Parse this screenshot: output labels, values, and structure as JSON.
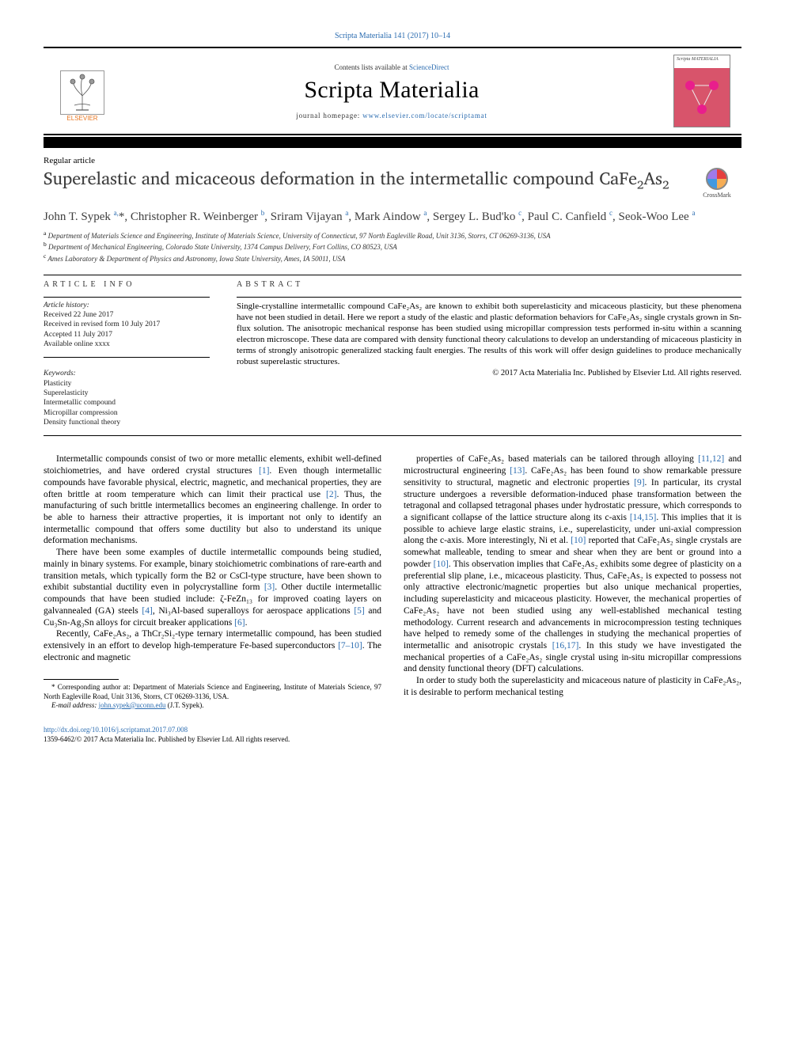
{
  "citation": "Scripta Materialia 141 (2017) 10–14",
  "banner": {
    "contents_prefix": "Contents lists available at ",
    "contents_link": "ScienceDirect",
    "journal": "Scripta Materialia",
    "homepage_prefix": "journal homepage: ",
    "homepage_url": "www.elsevier.com/locate/scriptamat",
    "publisher_label": "ELSEVIER",
    "cover_title": "Scripta MATERIALIA"
  },
  "article_type": "Regular article",
  "title_parts": {
    "pre": "Superelastic and micaceous deformation in the intermetallic compound CaFe",
    "sub1": "2",
    "mid": "As",
    "sub2": "2"
  },
  "crossmark_label": "CrossMark",
  "authors_html": "John T. Sypek <sup>a,</sup>*, Christopher R. Weinberger <sup>b</sup>, Sriram Vijayan <sup>a</sup>, Mark Aindow <sup>a</sup>, Sergey L. Bud'ko <sup>c</sup>, Paul C. Canfield <sup>c</sup>, Seok-Woo Lee <sup>a</sup>",
  "affiliations": [
    "Department of Materials Science and Engineering, Institute of Materials Science, University of Connecticut, 97 North Eagleville Road, Unit 3136, Storrs, CT 06269-3136, USA",
    "Department of Mechanical Engineering, Colorado State University, 1374 Campus Delivery, Fort Collins, CO 80523, USA",
    "Ames Laboratory & Department of Physics and Astronomy, Iowa State University, Ames, IA 50011, USA"
  ],
  "affil_markers": [
    "a",
    "b",
    "c"
  ],
  "info": {
    "head": "ARTICLE INFO",
    "history_head": "Article history:",
    "history": [
      "Received 22 June 2017",
      "Received in revised form 10 July 2017",
      "Accepted 11 July 2017",
      "Available online xxxx"
    ],
    "keywords_head": "Keywords:",
    "keywords": [
      "Plasticity",
      "Superelasticity",
      "Intermetallic compound",
      "Micropillar compression",
      "Density functional theory"
    ]
  },
  "abstract": {
    "head": "ABSTRACT",
    "text": "Single-crystalline intermetallic compound CaFe₂As₂ are known to exhibit both superelasticity and micaceous plasticity, but these phenomena have not been studied in detail. Here we report a study of the elastic and plastic deformation behaviors for CaFe₂As₂ single crystals grown in Sn-flux solution. The anisotropic mechanical response has been studied using micropillar compression tests performed in-situ within a scanning electron microscope. These data are compared with density functional theory calculations to develop an understanding of micaceous plasticity in terms of strongly anisotropic generalized stacking fault energies. The results of this work will offer design guidelines to produce mechanically robust superelastic structures.",
    "copyright": "© 2017 Acta Materialia Inc. Published by Elsevier Ltd. All rights reserved."
  },
  "body": {
    "p1": "Intermetallic compounds consist of two or more metallic elements, exhibit well-defined stoichiometries, and have ordered crystal structures [1]. Even though intermetallic compounds have favorable physical, electric, magnetic, and mechanical properties, they are often brittle at room temperature which can limit their practical use [2]. Thus, the manufacturing of such brittle intermetallics becomes an engineering challenge. In order to be able to harness their attractive properties, it is important not only to identify an intermetallic compound that offers some ductility but also to understand its unique deformation mechanisms.",
    "p2": "There have been some examples of ductile intermetallic compounds being studied, mainly in binary systems. For example, binary stoichiometric combinations of rare-earth and transition metals, which typically form the B2 or CsCl-type structure, have been shown to exhibit substantial ductility even in polycrystalline form [3]. Other ductile intermetallic compounds that have been studied include: ζ-FeZn₁₃ for improved coating layers on galvannealed (GA) steels [4], Ni₃Al-based superalloys for aerospace applications [5] and Cu₃Sn-Ag₃Sn alloys for circuit breaker applications [6].",
    "p3": "Recently, CaFe₂As₂, a ThCr₂Si₂-type ternary intermetallic compound, has been studied extensively in an effort to develop high-temperature Fe-based superconductors [7–10]. The electronic and magnetic",
    "p4": "properties of CaFe₂As₂ based materials can be tailored through alloying [11,12] and microstructural engineering [13]. CaFe₂As₂ has been found to show remarkable pressure sensitivity to structural, magnetic and electronic properties [9]. In particular, its crystal structure undergoes a reversible deformation-induced phase transformation between the tetragonal and collapsed tetragonal phases under hydrostatic pressure, which corresponds to a significant collapse of the lattice structure along its c-axis [14,15]. This implies that it is possible to achieve large elastic strains, i.e., superelasticity, under uni-axial compression along the c-axis. More interestingly, Ni et al. [10] reported that CaFe₂As₂ single crystals are somewhat malleable, tending to smear and shear when they are bent or ground into a powder [10]. This observation implies that CaFe₂As₂ exhibits some degree of plasticity on a preferential slip plane, i.e., micaceous plasticity. Thus, CaFe₂As₂ is expected to possess not only attractive electronic/magnetic properties but also unique mechanical properties, including superelasticity and micaceous plasticity. However, the mechanical properties of CaFe₂As₂ have not been studied using any well-established mechanical testing methodology. Current research and advancements in microcompression testing techniques have helped to remedy some of the challenges in studying the mechanical properties of intermetallic and anisotropic crystals [16,17]. In this study we have investigated the mechanical properties of a CaFe₂As₂ single crystal using in-situ micropillar compressions and density functional theory (DFT) calculations.",
    "p5": "In order to study both the superelasticity and micaceous nature of plasticity in CaFe₂As₂, it is desirable to perform mechanical testing"
  },
  "footnote": {
    "corr_prefix": "* Corresponding author at: ",
    "corr_text": "Department of Materials Science and Engineering, Institute of Materials Science, 97 North Eagleville Road, Unit 3136, Storrs, CT 06269-3136, USA.",
    "email_label": "E-mail address: ",
    "email": "john.sypek@uconn.edu",
    "email_suffix": " (J.T. Sypek)."
  },
  "bottom": {
    "doi": "http://dx.doi.org/10.1016/j.scriptamat.2017.07.008",
    "issn_line": "1359-6462/© 2017 Acta Materialia Inc. Published by Elsevier Ltd. All rights reserved."
  },
  "colors": {
    "link": "#2b6cb0",
    "orange": "#e87722",
    "cover_pink": "#d8546b",
    "text": "#000000"
  }
}
